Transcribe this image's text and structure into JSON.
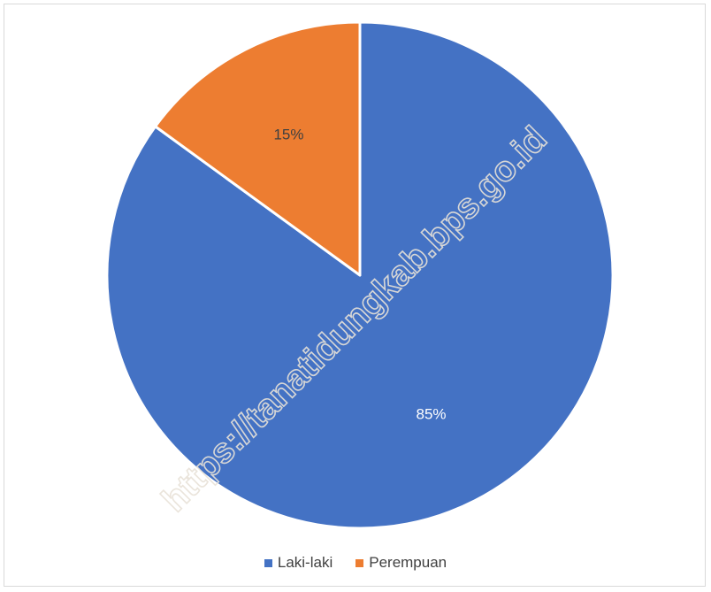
{
  "chart_data": {
    "type": "pie",
    "title": "",
    "series": [
      {
        "name": "Laki-laki",
        "value": 85,
        "label": "85%",
        "color": "#4472c4"
      },
      {
        "name": "Perempuan",
        "value": 15,
        "label": "15%",
        "color": "#ed7d31"
      }
    ],
    "start_angle_deg": 0,
    "direction": "clockwise",
    "legend_position": "bottom",
    "label_colors": {
      "Laki-laki": "#ffffff",
      "Perempuan": "#404040"
    }
  },
  "watermark": "https://tanatidungkab.bps.go.id"
}
